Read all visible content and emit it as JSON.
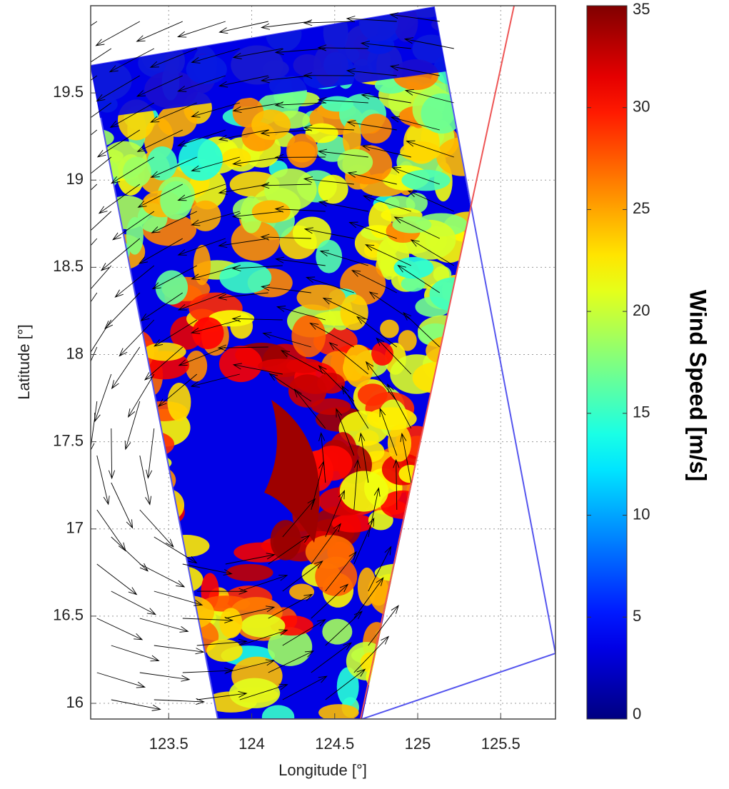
{
  "chart_data": {
    "type": "map",
    "x_label": "Longitude [°]",
    "y_label": "Latitude [°]",
    "xlim": [
      123.03,
      125.83
    ],
    "ylim": [
      15.91,
      20.0
    ],
    "xticks": [
      123.5,
      124,
      124.5,
      125,
      125.5
    ],
    "yticks": [
      16,
      16.5,
      17,
      17.5,
      18,
      18.5,
      19,
      19.5
    ],
    "grid": true,
    "colorbar": {
      "label": "Wind Speed [m/s]",
      "lim": [
        0,
        35
      ],
      "ticks": [
        0,
        5,
        10,
        15,
        20,
        25,
        30,
        35
      ],
      "colormap": "jet"
    }
  }
}
